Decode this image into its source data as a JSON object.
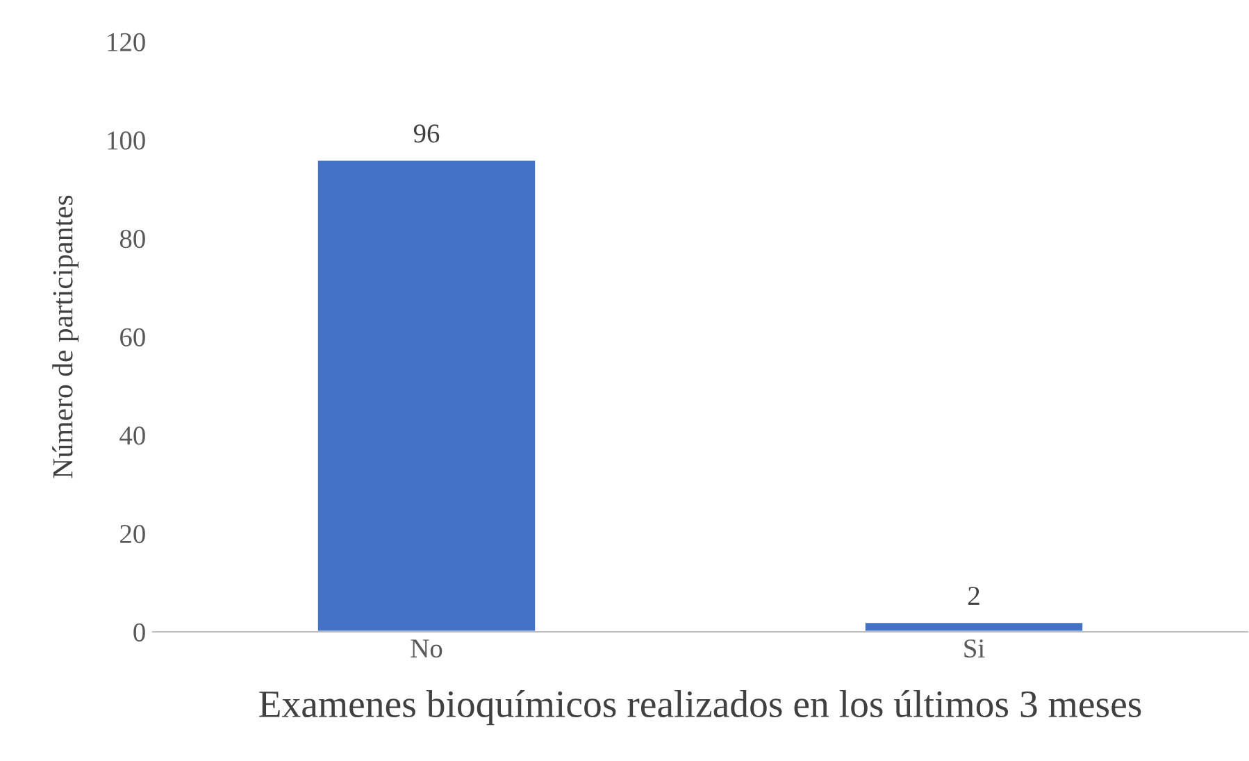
{
  "chart_data": {
    "type": "bar",
    "xlabel": "Examenes bioquímicos realizados en los últimos 3 meses",
    "ylabel": "Número de participantes",
    "categories": [
      "No",
      "Si"
    ],
    "values": [
      96,
      2
    ],
    "color": "#4472c4",
    "ylim": [
      0,
      120
    ],
    "yticks": [
      0,
      20,
      40,
      60,
      80,
      100,
      120
    ],
    "grid": false,
    "data_labels": true
  }
}
